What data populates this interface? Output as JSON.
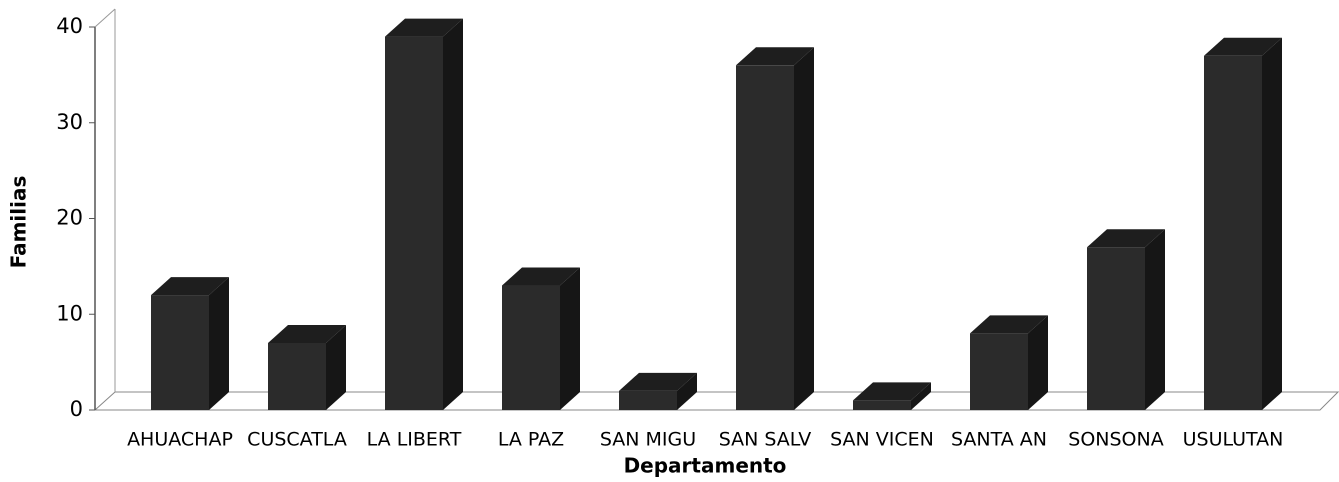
{
  "chart_data": {
    "type": "bar3d",
    "x_label": "Departamento",
    "y_label": "Familias",
    "categories": [
      "AHUACHAP",
      "CUSCATLA",
      "LA LIBERT",
      "LA PAZ",
      "SAN MIGU",
      "SAN SALV",
      "SAN VICEN",
      "SANTA AN",
      "SONSONA",
      "USULUTAN"
    ],
    "values": [
      12,
      7,
      39,
      13,
      2,
      36,
      1,
      8,
      17,
      37
    ],
    "color": "#2b2b2b",
    "ylim": [
      0,
      40
    ],
    "yticks": [
      0,
      10,
      20,
      30,
      40
    ]
  }
}
